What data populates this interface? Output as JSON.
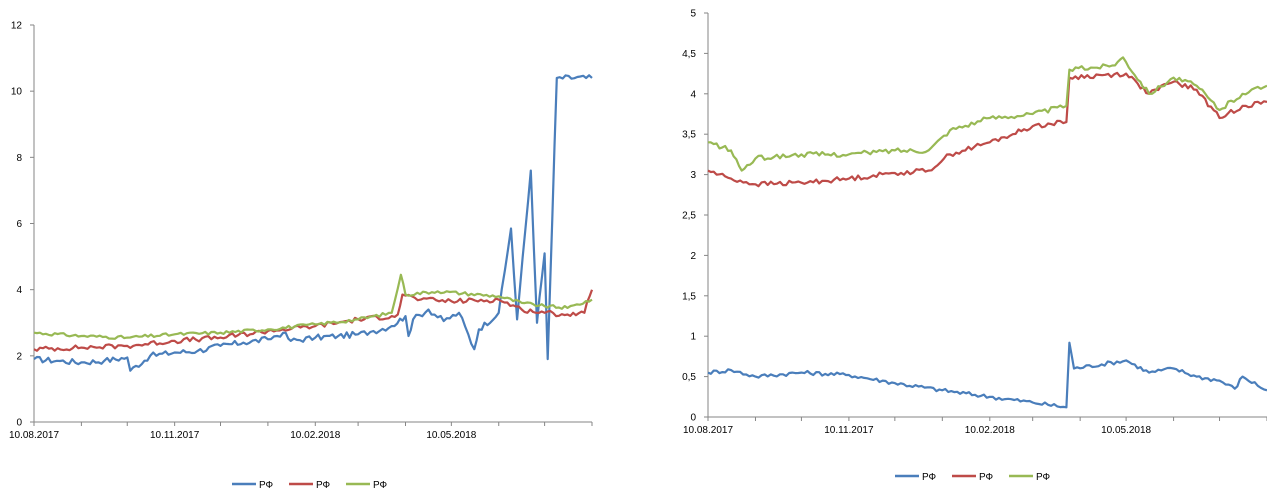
{
  "chart_data": [
    {
      "type": "line",
      "x_tick_labels": [
        "10.08.2017",
        "10.11.2017",
        "10.02.2018",
        "10.05.2018"
      ],
      "y_tick_labels": [
        "0",
        "2",
        "4",
        "6",
        "8",
        "10",
        "12"
      ],
      "ylim": [
        0,
        12
      ],
      "x_start": "10.08.2017",
      "x_end": "10.08.2018",
      "grid": false,
      "legend": "bottom",
      "series": [
        {
          "name": "РФ",
          "color": "#4a7ebb",
          "points": [
            [
              "10.08.2017",
              1.9
            ],
            [
              "25.08.2017",
              1.85
            ],
            [
              "10.09.2017",
              1.8
            ],
            [
              "25.09.2017",
              1.85
            ],
            [
              "10.10.2017",
              1.95
            ],
            [
              "12.10.2017",
              1.55
            ],
            [
              "25.10.2017",
              2.0
            ],
            [
              "10.11.2017",
              2.1
            ],
            [
              "25.11.2017",
              2.15
            ],
            [
              "10.12.2017",
              2.3
            ],
            [
              "25.12.2017",
              2.4
            ],
            [
              "10.01.2018",
              2.5
            ],
            [
              "20.01.2018",
              2.7
            ],
            [
              "25.01.2018",
              2.45
            ],
            [
              "10.02.2018",
              2.55
            ],
            [
              "25.02.2018",
              2.6
            ],
            [
              "10.03.2018",
              2.65
            ],
            [
              "20.03.2018",
              2.75
            ],
            [
              "01.04.2018",
              2.9
            ],
            [
              "10.04.2018",
              3.2
            ],
            [
              "12.04.2018",
              2.6
            ],
            [
              "15.04.2018",
              3.1
            ],
            [
              "25.04.2018",
              3.4
            ],
            [
              "05.05.2018",
              3.05
            ],
            [
              "15.05.2018",
              3.3
            ],
            [
              "25.05.2018",
              2.2
            ],
            [
              "28.05.2018",
              2.8
            ],
            [
              "10.06.2018",
              3.3
            ],
            [
              "18.06.2018",
              5.85
            ],
            [
              "22.06.2018",
              3.1
            ],
            [
              "01.07.2018",
              7.6
            ],
            [
              "05.07.2018",
              3.0
            ],
            [
              "10.07.2018",
              5.1
            ],
            [
              "12.07.2018",
              1.9
            ],
            [
              "15.07.2018",
              6.15
            ],
            [
              "18.07.2018",
              10.4
            ],
            [
              "10.08.2018",
              10.4
            ]
          ]
        },
        {
          "name": "РФ",
          "color": "#be4b48",
          "points": [
            [
              "10.08.2017",
              2.2
            ],
            [
              "10.09.2017",
              2.25
            ],
            [
              "10.10.2017",
              2.3
            ],
            [
              "10.11.2017",
              2.45
            ],
            [
              "10.12.2017",
              2.55
            ],
            [
              "10.01.2018",
              2.75
            ],
            [
              "10.02.2018",
              2.9
            ],
            [
              "10.03.2018",
              3.1
            ],
            [
              "01.04.2018",
              3.2
            ],
            [
              "05.04.2018",
              3.25
            ],
            [
              "08.04.2018",
              3.85
            ],
            [
              "20.04.2018",
              3.7
            ],
            [
              "10.05.2018",
              3.65
            ],
            [
              "10.06.2018",
              3.7
            ],
            [
              "25.06.2018",
              3.4
            ],
            [
              "10.07.2018",
              3.3
            ],
            [
              "25.07.2018",
              3.25
            ],
            [
              "05.08.2018",
              3.3
            ],
            [
              "10.08.2018",
              4.0
            ]
          ]
        },
        {
          "name": "РФ",
          "color": "#98b954",
          "points": [
            [
              "10.08.2017",
              2.7
            ],
            [
              "10.09.2017",
              2.6
            ],
            [
              "10.10.2017",
              2.55
            ],
            [
              "10.11.2017",
              2.65
            ],
            [
              "10.12.2017",
              2.7
            ],
            [
              "10.01.2018",
              2.8
            ],
            [
              "10.02.2018",
              2.95
            ],
            [
              "10.03.2018",
              3.1
            ],
            [
              "01.04.2018",
              3.3
            ],
            [
              "07.04.2018",
              4.45
            ],
            [
              "10.04.2018",
              3.85
            ],
            [
              "01.05.2018",
              3.95
            ],
            [
              "10.06.2018",
              3.8
            ],
            [
              "25.06.2018",
              3.6
            ],
            [
              "10.07.2018",
              3.5
            ],
            [
              "25.07.2018",
              3.45
            ],
            [
              "10.08.2018",
              3.7
            ]
          ]
        }
      ]
    },
    {
      "type": "line",
      "x_tick_labels": [
        "10.08.2017",
        "10.11.2017",
        "10.02.2018",
        "10.05.2018"
      ],
      "y_tick_labels": [
        "0",
        "0,5",
        "1",
        "1,5",
        "2",
        "2,5",
        "3",
        "3,5",
        "4",
        "4,5",
        "5"
      ],
      "ylim": [
        0,
        5
      ],
      "x_start": "10.08.2017",
      "x_end": "10.08.2018",
      "grid": false,
      "legend": "bottom",
      "series": [
        {
          "name": "РФ",
          "color": "#4a7ebb",
          "points": [
            [
              "10.08.2017",
              0.55
            ],
            [
              "25.08.2017",
              0.58
            ],
            [
              "10.09.2017",
              0.5
            ],
            [
              "10.10.2017",
              0.55
            ],
            [
              "10.11.2017",
              0.52
            ],
            [
              "10.12.2017",
              0.42
            ],
            [
              "10.01.2018",
              0.33
            ],
            [
              "10.02.2018",
              0.25
            ],
            [
              "10.03.2018",
              0.18
            ],
            [
              "01.04.2018",
              0.12
            ],
            [
              "03.04.2018",
              0.92
            ],
            [
              "06.04.2018",
              0.6
            ],
            [
              "10.05.2018",
              0.7
            ],
            [
              "25.05.2018",
              0.55
            ],
            [
              "10.06.2018",
              0.6
            ],
            [
              "25.06.2018",
              0.5
            ],
            [
              "10.07.2018",
              0.45
            ],
            [
              "20.07.2018",
              0.35
            ],
            [
              "25.07.2018",
              0.5
            ],
            [
              "10.08.2018",
              0.33
            ]
          ]
        },
        {
          "name": "РФ",
          "color": "#be4b48",
          "points": [
            [
              "10.08.2017",
              3.05
            ],
            [
              "25.08.2017",
              2.95
            ],
            [
              "10.09.2017",
              2.88
            ],
            [
              "10.10.2017",
              2.9
            ],
            [
              "10.11.2017",
              2.95
            ],
            [
              "10.12.2017",
              3.02
            ],
            [
              "01.01.2018",
              3.05
            ],
            [
              "15.01.2018",
              3.25
            ],
            [
              "10.02.2018",
              3.4
            ],
            [
              "25.02.2018",
              3.5
            ],
            [
              "10.03.2018",
              3.6
            ],
            [
              "01.04.2018",
              3.65
            ],
            [
              "03.04.2018",
              4.2
            ],
            [
              "10.05.2018",
              4.25
            ],
            [
              "25.05.2018",
              4.0
            ],
            [
              "10.06.2018",
              4.15
            ],
            [
              "25.06.2018",
              4.05
            ],
            [
              "10.07.2018",
              3.7
            ],
            [
              "25.07.2018",
              3.85
            ],
            [
              "10.08.2018",
              3.9
            ]
          ]
        },
        {
          "name": "РФ",
          "color": "#98b954",
          "points": [
            [
              "10.08.2017",
              3.4
            ],
            [
              "25.08.2017",
              3.3
            ],
            [
              "01.09.2017",
              3.05
            ],
            [
              "10.09.2017",
              3.2
            ],
            [
              "10.10.2017",
              3.25
            ],
            [
              "10.11.2017",
              3.25
            ],
            [
              "10.12.2017",
              3.3
            ],
            [
              "01.01.2018",
              3.3
            ],
            [
              "15.01.2018",
              3.55
            ],
            [
              "10.02.2018",
              3.7
            ],
            [
              "10.03.2018",
              3.75
            ],
            [
              "01.04.2018",
              3.85
            ],
            [
              "03.04.2018",
              4.3
            ],
            [
              "01.05.2018",
              4.35
            ],
            [
              "08.05.2018",
              4.45
            ],
            [
              "25.05.2018",
              4.0
            ],
            [
              "10.06.2018",
              4.2
            ],
            [
              "25.06.2018",
              4.1
            ],
            [
              "10.07.2018",
              3.8
            ],
            [
              "25.07.2018",
              4.0
            ],
            [
              "10.08.2018",
              4.1
            ]
          ]
        }
      ]
    }
  ]
}
